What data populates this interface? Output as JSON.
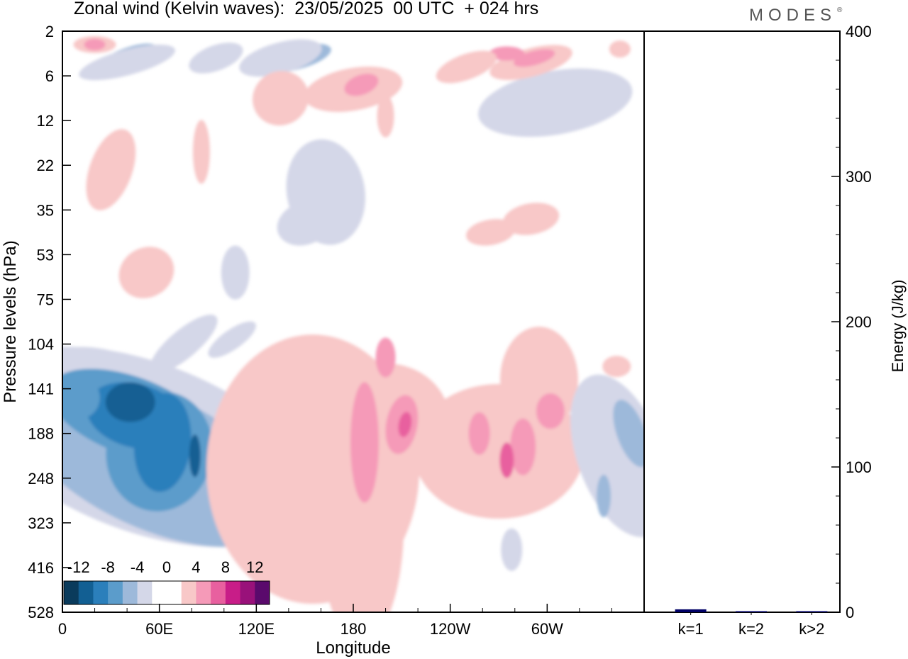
{
  "title": "Zonal wind (Kelvin waves):  23/05/2025  00 UTC  + 024 hrs",
  "brand": "MODES",
  "brand_mark": "®",
  "chart_data": [
    {
      "type": "heatmap",
      "title": "Zonal wind (Kelvin waves):  23/05/2025  00 UTC  + 024 hrs",
      "xlabel": "Longitude",
      "ylabel": "Pressure levels (hPa)",
      "x_ticks": [
        "0",
        "60E",
        "120E",
        "180",
        "120W",
        "60W"
      ],
      "x_tick_positions_deg": [
        0,
        60,
        120,
        180,
        240,
        300
      ],
      "xlim_deg": [
        0,
        360
      ],
      "y_ticks": [
        "2",
        "6",
        "12",
        "22",
        "35",
        "53",
        "75",
        "104",
        "141",
        "188",
        "248",
        "323",
        "416",
        "528"
      ],
      "y_scale": "pressure levels, top to bottom",
      "colorbar": {
        "labels": [
          "-12",
          "-8",
          "-4",
          "0",
          "4",
          "8",
          "12"
        ],
        "colors": [
          "#0a3b5c",
          "#125f93",
          "#2b7fbb",
          "#5b9ccb",
          "#9db9da",
          "#d4d7e8",
          "#ffffff",
          "#ffffff",
          "#f8c8c8",
          "#f59ab8",
          "#e8609f",
          "#c81d88",
          "#99117a",
          "#5a0a6c"
        ]
      },
      "regions": [
        {
          "name": "easterly-core-indian-ocean",
          "lon": [
            5,
            95
          ],
          "levels": [
            "104",
            "323"
          ],
          "min": -14
        },
        {
          "name": "westerly-band-dateline",
          "lon": [
            100,
            205
          ],
          "levels": [
            "104",
            "416"
          ],
          "max": 10
        },
        {
          "name": "westerly-band-western-hemisphere",
          "lon": [
            225,
            315
          ],
          "levels": [
            "75",
            "248"
          ],
          "max": 8
        },
        {
          "name": "easterly-eastern-pacific",
          "lon": [
            325,
            360
          ],
          "levels": [
            "104",
            "323"
          ],
          "min": -6
        },
        {
          "name": "easterly-upper-dateline",
          "lon": [
            140,
            175
          ],
          "levels": [
            "12",
            "53"
          ],
          "min": -4
        }
      ]
    },
    {
      "type": "bar",
      "categories": [
        "k=1",
        "k=2",
        "k>2"
      ],
      "values": [
        2,
        0.5,
        0.5
      ],
      "ylabel": "Energy (J/kg)",
      "ylim": [
        0,
        400
      ],
      "y_ticks": [
        "0",
        "100",
        "200",
        "300",
        "400"
      ],
      "bar_color": "#000066"
    }
  ]
}
